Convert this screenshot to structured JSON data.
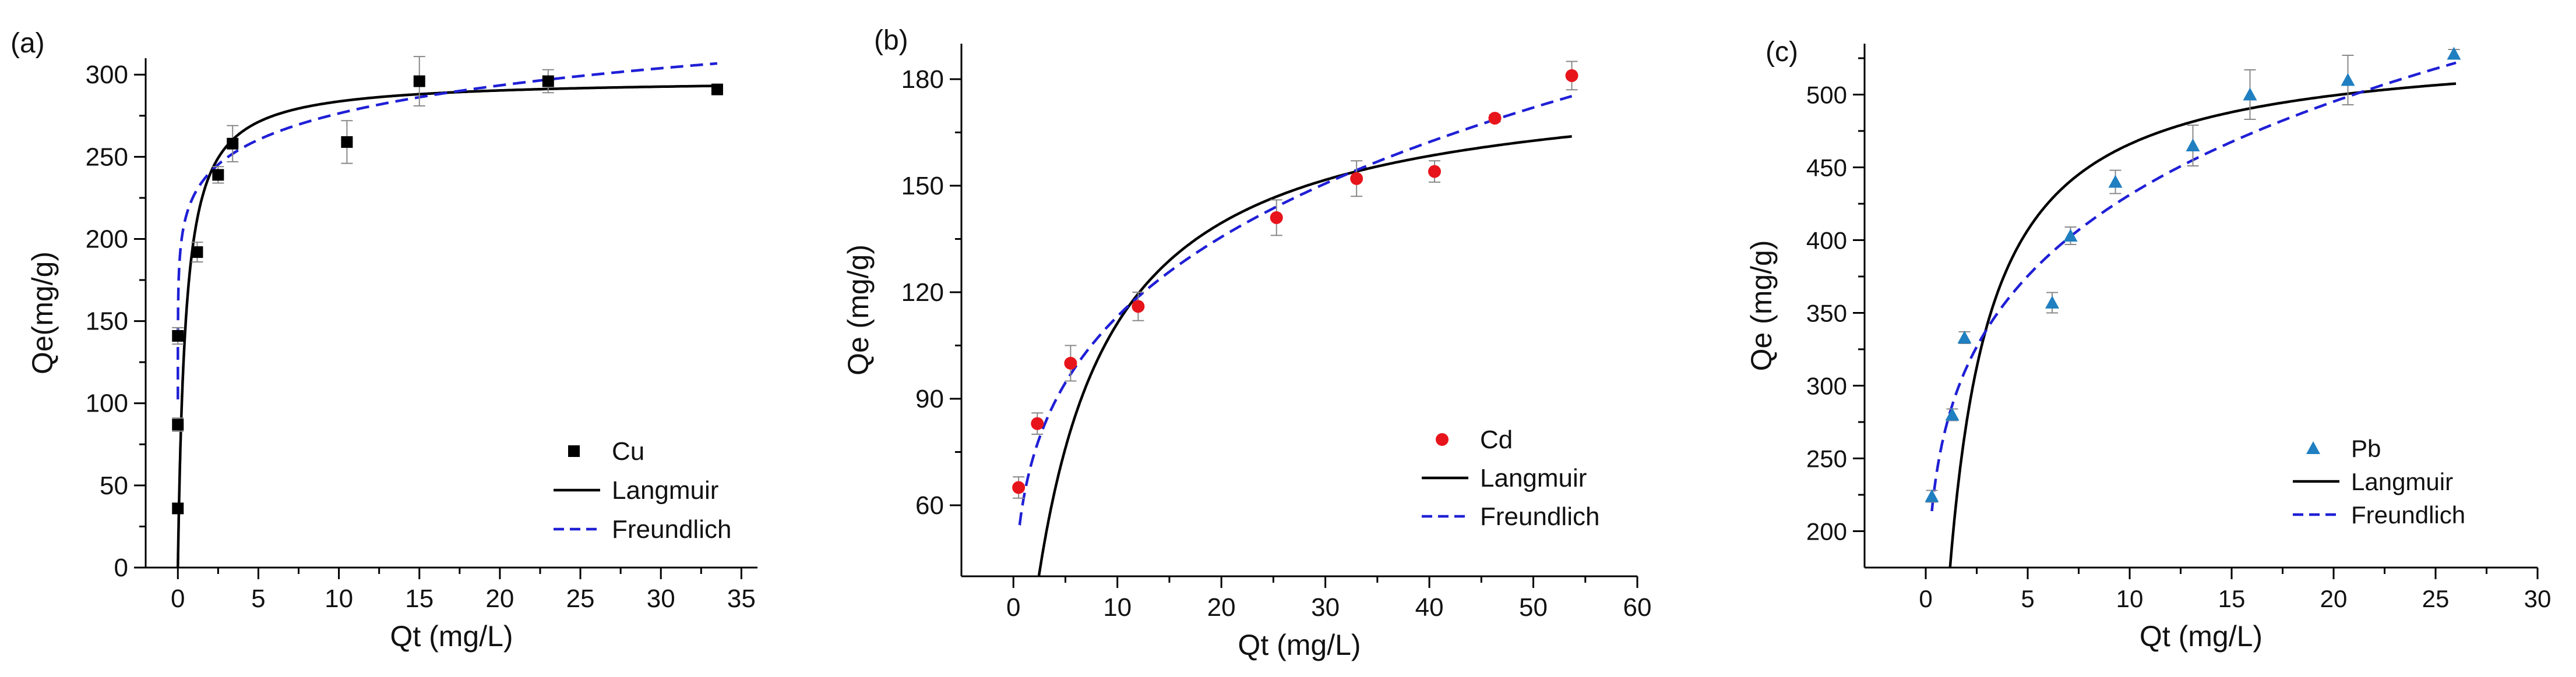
{
  "figure_title": "",
  "styles": {
    "langmuir_color": "#000000",
    "freundlich_color": "#1f1fd6"
  },
  "chart_data": [
    {
      "type": "scatter",
      "panel_label": "(a)",
      "title": "",
      "xlabel": "Qt (mg/L)",
      "ylabel": "Qe(mg/g)",
      "xlim": [
        -2,
        36
      ],
      "ylim": [
        0,
        310
      ],
      "xticks": [
        0,
        5,
        10,
        15,
        20,
        25,
        30,
        35
      ],
      "yticks": [
        0,
        50,
        100,
        150,
        200,
        250,
        300
      ],
      "legend_position": "center-right",
      "marker": "square",
      "marker_color": "#000000",
      "series": [
        {
          "name": "Cu",
          "x": [
            0.0,
            0.0,
            0.0,
            1.2,
            2.5,
            3.4,
            10.5,
            15.0,
            23.0,
            33.5
          ],
          "y": [
            36,
            87,
            141,
            192,
            239,
            258,
            259,
            296,
            296,
            291
          ],
          "error": [
            3,
            4,
            5,
            6,
            5,
            11,
            13,
            15,
            7,
            0
          ]
        }
      ],
      "fits": [
        {
          "name": "Langmuir",
          "model": "langmuir",
          "qmax": 297.4,
          "k": 2.07,
          "xmin": 0.0,
          "xmax": 33.5
        },
        {
          "name": "Freundlich",
          "model": "freundlich",
          "kf": 226.6,
          "n_inv": 0.0863,
          "xmin": 0.0,
          "xmax": 33.5
        }
      ]
    },
    {
      "type": "scatter",
      "panel_label": "(b)",
      "title": "",
      "xlabel": "Qt (mg/L)",
      "ylabel": "Qe (mg/g)",
      "xlim": [
        -5,
        60
      ],
      "ylim": [
        40,
        190
      ],
      "xticks": [
        0,
        10,
        20,
        30,
        40,
        50,
        60
      ],
      "yticks": [
        60,
        90,
        120,
        150,
        180
      ],
      "legend_position": "center-right",
      "marker": "circle",
      "marker_color": "#e8141b",
      "series": [
        {
          "name": "Cd",
          "x": [
            0.5,
            2.3,
            5.5,
            12.0,
            25.3,
            33.0,
            40.5,
            46.3,
            53.7
          ],
          "y": [
            65,
            83,
            100,
            116,
            141,
            152,
            154,
            169,
            181
          ],
          "error": [
            3,
            3,
            5,
            4,
            5,
            5,
            3,
            1,
            4
          ]
        }
      ],
      "fits": [
        {
          "name": "Langmuir",
          "model": "langmuir_offset",
          "qmax": 182.0,
          "k": 0.171,
          "x0": 0.8,
          "xmin": 0.8,
          "xmax": 53.7
        },
        {
          "name": "Freundlich",
          "model": "freundlich",
          "kf": 62.2,
          "n_inv": 0.26,
          "xmin": 0.6,
          "xmax": 53.7
        }
      ]
    },
    {
      "type": "scatter",
      "panel_label": "(c)",
      "title": "",
      "xlabel": "Qt (mg/L)",
      "ylabel": "Qe (mg/g)",
      "xlim": [
        -3,
        30
      ],
      "ylim": [
        175,
        535
      ],
      "xticks": [
        0,
        5,
        10,
        15,
        20,
        25,
        30
      ],
      "yticks": [
        200,
        250,
        300,
        350,
        400,
        450,
        500
      ],
      "legend_position": "center-right",
      "marker": "triangle",
      "marker_color": "#1f7fc0",
      "series": [
        {
          "name": "Pb",
          "x": [
            0.3,
            1.3,
            1.9,
            6.2,
            7.1,
            9.3,
            13.1,
            15.9,
            20.7,
            25.9
          ],
          "y": [
            224,
            280,
            333,
            357,
            403,
            440,
            465,
            500,
            510,
            528
          ],
          "error": [
            4,
            4,
            4,
            7,
            6,
            8,
            14,
            17,
            17,
            3
          ]
        }
      ],
      "fits": [
        {
          "name": "Langmuir",
          "model": "langmuir_offset",
          "qmax": 536.0,
          "k": 0.7,
          "x0": 0.5,
          "xmin": 0.5,
          "xmax": 26
        },
        {
          "name": "Freundlich",
          "model": "freundlich",
          "kf": 272.0,
          "n_inv": 0.2,
          "xmin": 0.3,
          "xmax": 26
        }
      ]
    }
  ]
}
